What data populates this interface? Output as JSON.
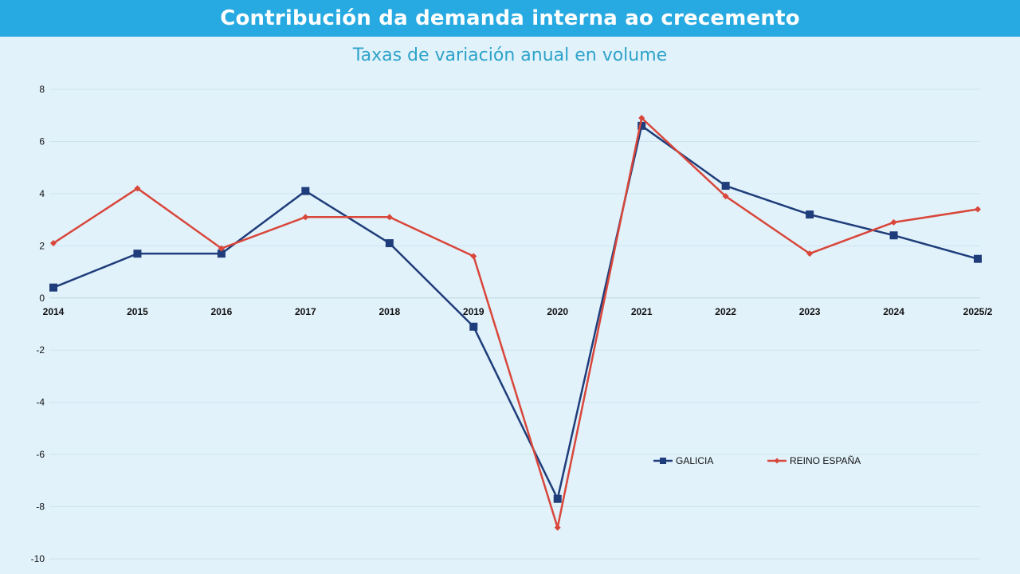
{
  "header": {
    "title": "Contribución da demanda interna ao crecemento",
    "subtitle": "Taxas de variación anual en volume"
  },
  "colors": {
    "header_bg": "#27aae1",
    "plot_bg": "#e1f2fb",
    "galicia": "#1f3d7a",
    "espana": "#d9463a"
  },
  "chart_data": {
    "type": "line",
    "title": "Contribución da demanda interna ao crecemento",
    "subtitle": "Taxas de variación anual en volume",
    "xlabel": "",
    "ylabel": "",
    "categories": [
      "2014",
      "2015",
      "2016",
      "2017",
      "2018",
      "2019",
      "2020",
      "2021",
      "2022",
      "2023",
      "2024",
      "2025/2"
    ],
    "ylim": [
      -10,
      8
    ],
    "yticks": [
      8,
      6,
      4,
      2,
      0,
      -2,
      -4,
      -6,
      -8,
      -10
    ],
    "grid": true,
    "legend_position": "bottom-right",
    "series": [
      {
        "name": "GALICIA",
        "marker": "square",
        "values": [
          0.4,
          1.7,
          1.7,
          4.1,
          2.1,
          -1.1,
          -7.7,
          6.6,
          4.3,
          3.2,
          2.4,
          1.5
        ]
      },
      {
        "name": "REINO ESPAÑA",
        "marker": "diamond",
        "values": [
          2.1,
          4.2,
          1.9,
          3.1,
          3.1,
          1.6,
          -8.8,
          6.9,
          3.9,
          1.7,
          2.9,
          3.4
        ]
      }
    ]
  }
}
